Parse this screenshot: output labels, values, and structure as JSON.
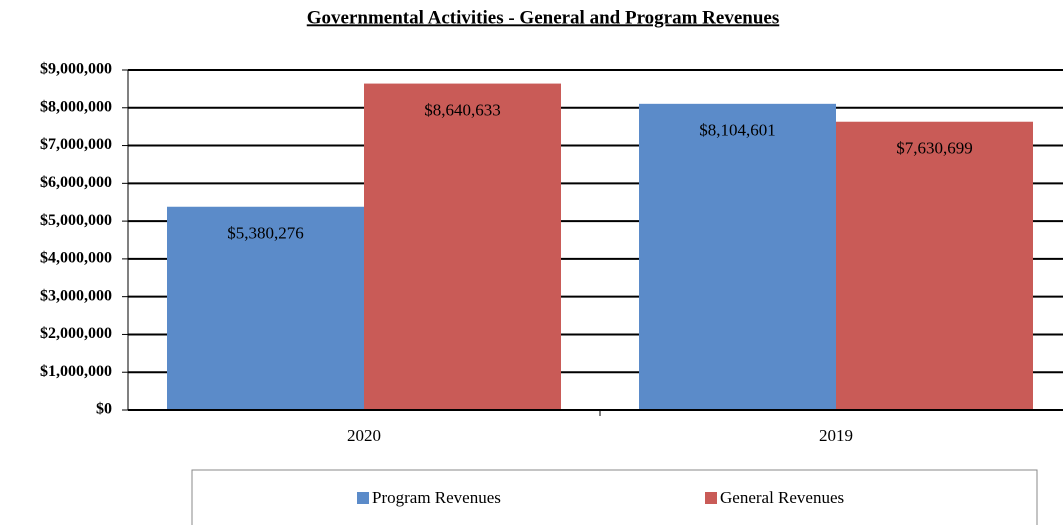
{
  "chart_data": {
    "type": "bar",
    "title": "Governmental Activities - General and Program Revenues",
    "categories": [
      "2020",
      "2019"
    ],
    "series": [
      {
        "name": "Program Revenues",
        "color": "#5b8bc9",
        "values": [
          5380276,
          8104601
        ],
        "value_labels": [
          "$5,380,276",
          "$8,104,601"
        ]
      },
      {
        "name": "General Revenues",
        "color": "#c95b57",
        "values": [
          8640633,
          7630699
        ],
        "value_labels": [
          "$8,640,633",
          "$7,630,699"
        ]
      }
    ],
    "ylim": [
      0,
      9000000
    ],
    "yticks": [
      {
        "value": 0,
        "label": "$0"
      },
      {
        "value": 1000000,
        "label": "$1,000,000"
      },
      {
        "value": 2000000,
        "label": "$2,000,000"
      },
      {
        "value": 3000000,
        "label": "$3,000,000"
      },
      {
        "value": 4000000,
        "label": "$4,000,000"
      },
      {
        "value": 5000000,
        "label": "$5,000,000"
      },
      {
        "value": 6000000,
        "label": "$6,000,000"
      },
      {
        "value": 7000000,
        "label": "$7,000,000"
      },
      {
        "value": 8000000,
        "label": "$8,000,000"
      },
      {
        "value": 9000000,
        "label": "$9,000,000"
      }
    ],
    "grid": true,
    "legend": "bottom"
  }
}
